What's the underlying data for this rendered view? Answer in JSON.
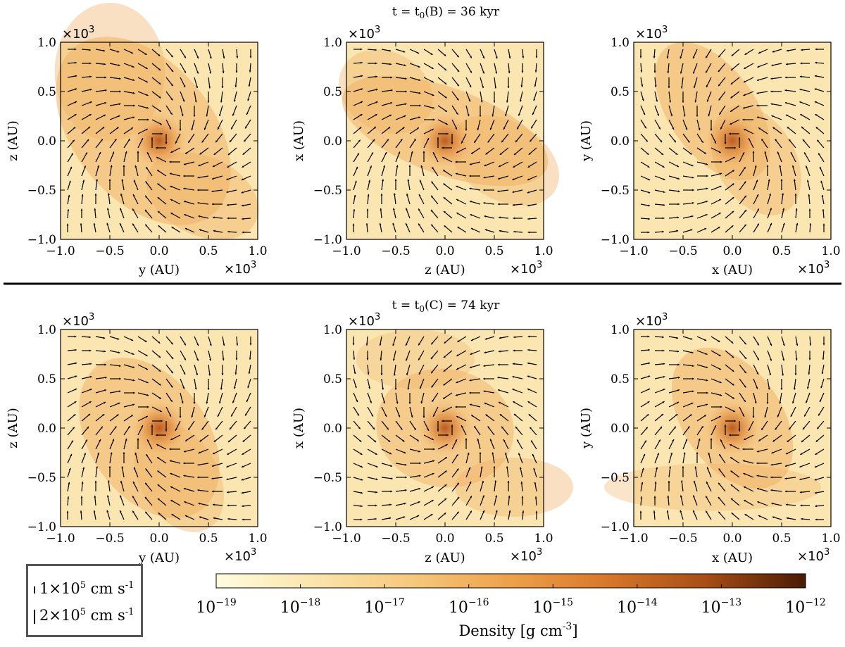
{
  "figure": {
    "rows": [
      {
        "title": {
          "pre": "t = t",
          "sub": "0",
          "post": "(B) = 36 kyr"
        },
        "panels": [
          {
            "xlabel": "y  (AU)",
            "ylabel": "z  (AU)"
          },
          {
            "xlabel": "z  (AU)",
            "ylabel": "x  (AU)"
          },
          {
            "xlabel": "x  (AU)",
            "ylabel": "y  (AU)"
          }
        ]
      },
      {
        "title": {
          "pre": "t = t",
          "sub": "0",
          "post": "(C) = 74 kyr"
        },
        "panels": [
          {
            "xlabel": "y  (AU)",
            "ylabel": "z  (AU)"
          },
          {
            "xlabel": "z  (AU)",
            "ylabel": "x  (AU)"
          },
          {
            "xlabel": "x  (AU)",
            "ylabel": "y  (AU)"
          }
        ]
      }
    ],
    "axis_multiplier": {
      "base": "×10",
      "exp": "3"
    }
  },
  "chart_data": {
    "type": "heatmap",
    "description_units": "AU",
    "xlim": [
      -1.0,
      1.0
    ],
    "ylim": [
      -1.0,
      1.0
    ],
    "tick_labels": [
      "−1.0",
      "−0.5",
      "0.0",
      "0.5",
      "1.0"
    ],
    "tick_values": [
      -1.0,
      -0.5,
      0.0,
      0.5,
      1.0
    ],
    "colorbar": {
      "label": "Density [g cm",
      "label_exp": "-3",
      "label_end": "]",
      "scale": "log",
      "min_exp": -19,
      "max_exp": -12,
      "ticks": [
        {
          "base": "10",
          "exp": "−19"
        },
        {
          "base": "10",
          "exp": "−18"
        },
        {
          "base": "10",
          "exp": "−17"
        },
        {
          "base": "10",
          "exp": "−16"
        },
        {
          "base": "10",
          "exp": "−15"
        },
        {
          "base": "10",
          "exp": "−14"
        },
        {
          "base": "10",
          "exp": "−13"
        },
        {
          "base": "10",
          "exp": "−12"
        }
      ],
      "colors": [
        "#fffce0",
        "#fbe2a4",
        "#f5c06c",
        "#e88a38",
        "#c9601c",
        "#8a3a10",
        "#4a1a05"
      ]
    },
    "velocity_legend": [
      {
        "mantissa": "1×10",
        "exp": "5",
        "unit": " cm s",
        "unit_exp": "-1",
        "value": 100000
      },
      {
        "mantissa": "2×10",
        "exp": "5",
        "unit": " cm s",
        "unit_exp": "-1",
        "value": 200000
      }
    ],
    "panels": [
      {
        "row": 0,
        "col": 0,
        "view": "y-z",
        "time_kyr": 36
      },
      {
        "row": 0,
        "col": 1,
        "view": "z-x",
        "time_kyr": 36
      },
      {
        "row": 0,
        "col": 2,
        "view": "x-y",
        "time_kyr": 36
      },
      {
        "row": 1,
        "col": 0,
        "view": "y-z",
        "time_kyr": 74
      },
      {
        "row": 1,
        "col": 1,
        "view": "z-x",
        "time_kyr": 74
      },
      {
        "row": 1,
        "col": 2,
        "view": "x-y",
        "time_kyr": 74
      }
    ]
  }
}
